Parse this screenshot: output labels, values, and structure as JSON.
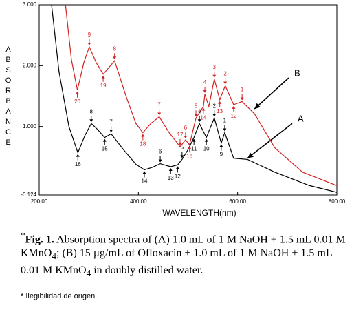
{
  "chart_data": {
    "type": "line",
    "x_label": "WAVELENGTH(nm)",
    "y_label": "ABSORBANCE",
    "xlim": [
      200,
      800
    ],
    "ylim": [
      -0.124,
      3.0
    ],
    "xticks": [
      {
        "value": 200,
        "label": "200.00"
      },
      {
        "value": 400,
        "label": "400.00"
      },
      {
        "value": 600,
        "label": "600.00"
      },
      {
        "value": 800,
        "label": "800.00"
      }
    ],
    "yticks": [
      {
        "value": -0.124,
        "label": "-0.124"
      },
      {
        "value": 1,
        "label": "1.000"
      },
      {
        "value": 2,
        "label": "2.000"
      },
      {
        "value": 3,
        "label": "3.000"
      }
    ],
    "series": [
      {
        "name": "A",
        "color": "#000000",
        "x": [
          225,
          240,
          260,
          278,
          292,
          305,
          318,
          332,
          345,
          370,
          395,
          412,
          428,
          444,
          465,
          479,
          488,
          500,
          512,
          523,
          537,
          553,
          567,
          574,
          592,
          620,
          675,
          745,
          800
        ],
        "values": [
          3.0,
          1.9,
          1.0,
          0.57,
          0.85,
          1.05,
          0.95,
          0.82,
          0.88,
          0.62,
          0.38,
          0.29,
          0.33,
          0.39,
          0.34,
          0.37,
          0.46,
          0.62,
          0.82,
          1.05,
          0.82,
          1.14,
          0.73,
          0.9,
          0.48,
          0.46,
          0.25,
          0.03,
          -0.08
        ],
        "label_pos": [
          710,
          1.05
        ],
        "arrow_to": [
          620,
          0.48
        ]
      },
      {
        "name": "B",
        "color": "#d42020",
        "x": [
          253,
          265,
          277,
          290,
          301,
          315,
          329,
          352,
          375,
          395,
          409,
          425,
          442,
          462,
          484,
          495,
          503,
          516,
          531,
          534,
          542,
          553,
          564,
          575,
          592,
          609,
          634,
          675,
          731,
          800
        ],
        "values": [
          3.0,
          2.1,
          1.6,
          2.05,
          2.31,
          2.05,
          1.86,
          2.08,
          1.5,
          1.05,
          0.9,
          1.05,
          1.16,
          0.9,
          0.67,
          0.78,
          0.7,
          1.14,
          1.33,
          1.53,
          1.33,
          1.78,
          1.44,
          1.67,
          1.36,
          1.41,
          1.21,
          0.65,
          0.25,
          0.03
        ],
        "label_pos": [
          703,
          1.8
        ],
        "arrow_to": [
          634,
          1.29
        ]
      }
    ],
    "annotations": [
      {
        "series": 1,
        "text": "20",
        "x": 277,
        "y": 1.6,
        "side": "below"
      },
      {
        "series": 1,
        "text": "9",
        "x": 301,
        "y": 2.31,
        "side": "above"
      },
      {
        "series": 1,
        "text": "19",
        "x": 329,
        "y": 1.86,
        "side": "below"
      },
      {
        "series": 1,
        "text": "8",
        "x": 352,
        "y": 2.08,
        "side": "above"
      },
      {
        "series": 1,
        "text": "18",
        "x": 409,
        "y": 0.9,
        "side": "below"
      },
      {
        "series": 1,
        "text": "7",
        "x": 442,
        "y": 1.16,
        "side": "above"
      },
      {
        "series": 1,
        "text": "17",
        "x": 484,
        "y": 0.67,
        "side": "above"
      },
      {
        "series": 1,
        "text": "6",
        "x": 495,
        "y": 0.78,
        "side": "above"
      },
      {
        "series": 1,
        "text": "16",
        "x": 503,
        "y": 0.7,
        "side": "below"
      },
      {
        "series": 1,
        "text": "5",
        "x": 516,
        "y": 1.14,
        "side": "above"
      },
      {
        "series": 1,
        "text": "14",
        "x": 531,
        "y": 1.33,
        "side": "below"
      },
      {
        "series": 1,
        "text": "4",
        "x": 534,
        "y": 1.53,
        "side": "above"
      },
      {
        "series": 1,
        "text": "3",
        "x": 553,
        "y": 1.78,
        "side": "above"
      },
      {
        "series": 1,
        "text": "13",
        "x": 564,
        "y": 1.44,
        "side": "below"
      },
      {
        "series": 1,
        "text": "2",
        "x": 575,
        "y": 1.67,
        "side": "above"
      },
      {
        "series": 1,
        "text": "12",
        "x": 592,
        "y": 1.36,
        "side": "below"
      },
      {
        "series": 1,
        "text": "1",
        "x": 609,
        "y": 1.41,
        "side": "above"
      },
      {
        "series": 0,
        "text": "16",
        "x": 278,
        "y": 0.57,
        "side": "below"
      },
      {
        "series": 0,
        "text": "8",
        "x": 305,
        "y": 1.05,
        "side": "above"
      },
      {
        "series": 0,
        "text": "15",
        "x": 332,
        "y": 0.82,
        "side": "below"
      },
      {
        "series": 0,
        "text": "7",
        "x": 345,
        "y": 0.88,
        "side": "above"
      },
      {
        "series": 0,
        "text": "14",
        "x": 412,
        "y": 0.29,
        "side": "below"
      },
      {
        "series": 0,
        "text": "6",
        "x": 444,
        "y": 0.39,
        "side": "above"
      },
      {
        "series": 0,
        "text": "13",
        "x": 465,
        "y": 0.34,
        "side": "below"
      },
      {
        "series": 0,
        "text": "12",
        "x": 479,
        "y": 0.37,
        "side": "below"
      },
      {
        "series": 0,
        "text": "5",
        "x": 488,
        "y": 0.46,
        "side": "above"
      },
      {
        "series": 0,
        "text": "11",
        "x": 512,
        "y": 0.82,
        "side": "below"
      },
      {
        "series": 0,
        "text": "4",
        "x": 523,
        "y": 1.05,
        "side": "above"
      },
      {
        "series": 0,
        "text": "10",
        "x": 537,
        "y": 0.82,
        "side": "below"
      },
      {
        "series": 0,
        "text": "2",
        "x": 553,
        "y": 1.14,
        "side": "above"
      },
      {
        "series": 0,
        "text": "9",
        "x": 567,
        "y": 0.73,
        "side": "below"
      },
      {
        "series": 0,
        "text": "1",
        "x": 574,
        "y": 0.9,
        "side": "above"
      }
    ],
    "caption_mark": "*",
    "caption_label": "Fig. 1.",
    "caption": [
      "Absorption spectra of (A) 1.0 mL of 1 M NaOH + 1.5 mL 0.01 M KMnO",
      "4",
      "; (B) 15 µg/mL of Ofloxacin + 1.0 mL of 1 M NaOH + 1.5 mL 0.01 M KMnO",
      "4",
      " in doubly distilled water."
    ],
    "footnote": "* Ilegibilidad de origen."
  }
}
